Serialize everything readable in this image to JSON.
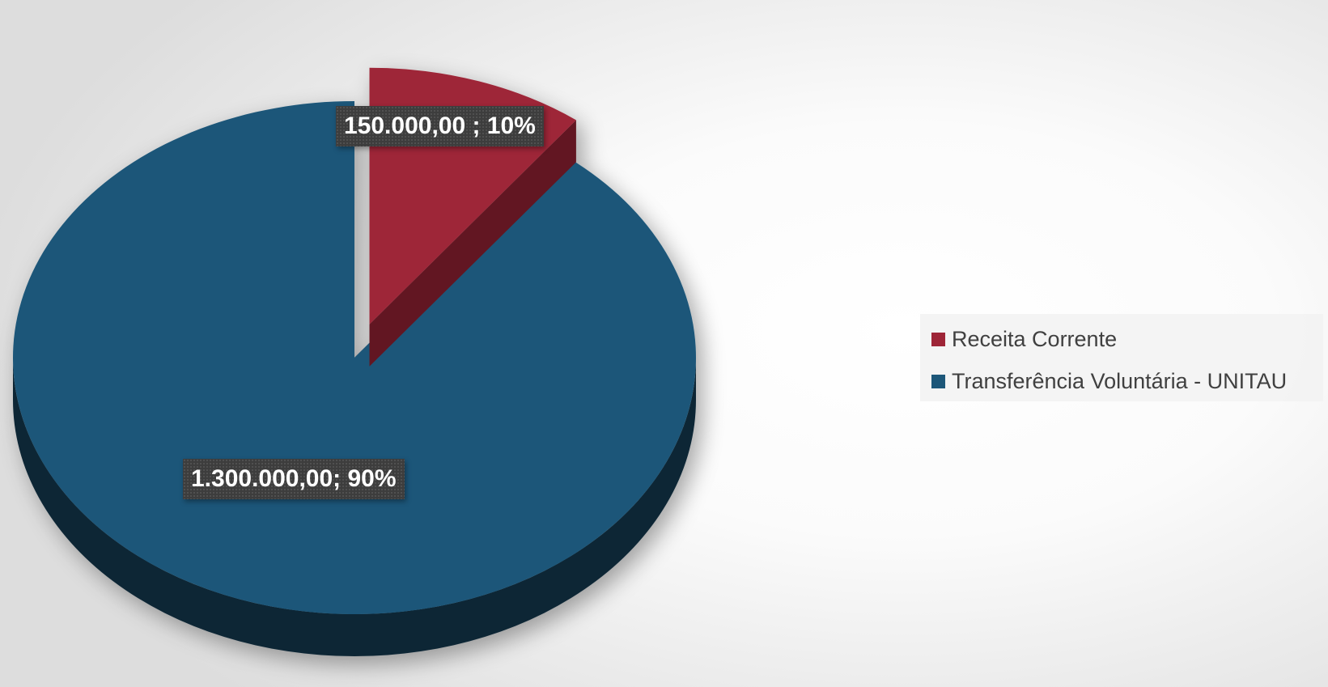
{
  "chart_data": {
    "type": "pie",
    "style": "3d-exploded",
    "categories": [
      "Receita Corrente",
      "Transferência Voluntária - UNITAU"
    ],
    "values": [
      150000,
      1300000
    ],
    "percentages": [
      10,
      90
    ],
    "data_labels": [
      "150.000,00 ; 10%",
      "1.300.000,00; 90%"
    ],
    "colors": [
      "#9e2537",
      "#1d5779"
    ],
    "legend_position": "right"
  },
  "legend": {
    "items": [
      {
        "label": "Receita Corrente",
        "color": "#9e2537"
      },
      {
        "label": "Transferência Voluntária - UNITAU",
        "color": "#1d5779"
      }
    ]
  }
}
